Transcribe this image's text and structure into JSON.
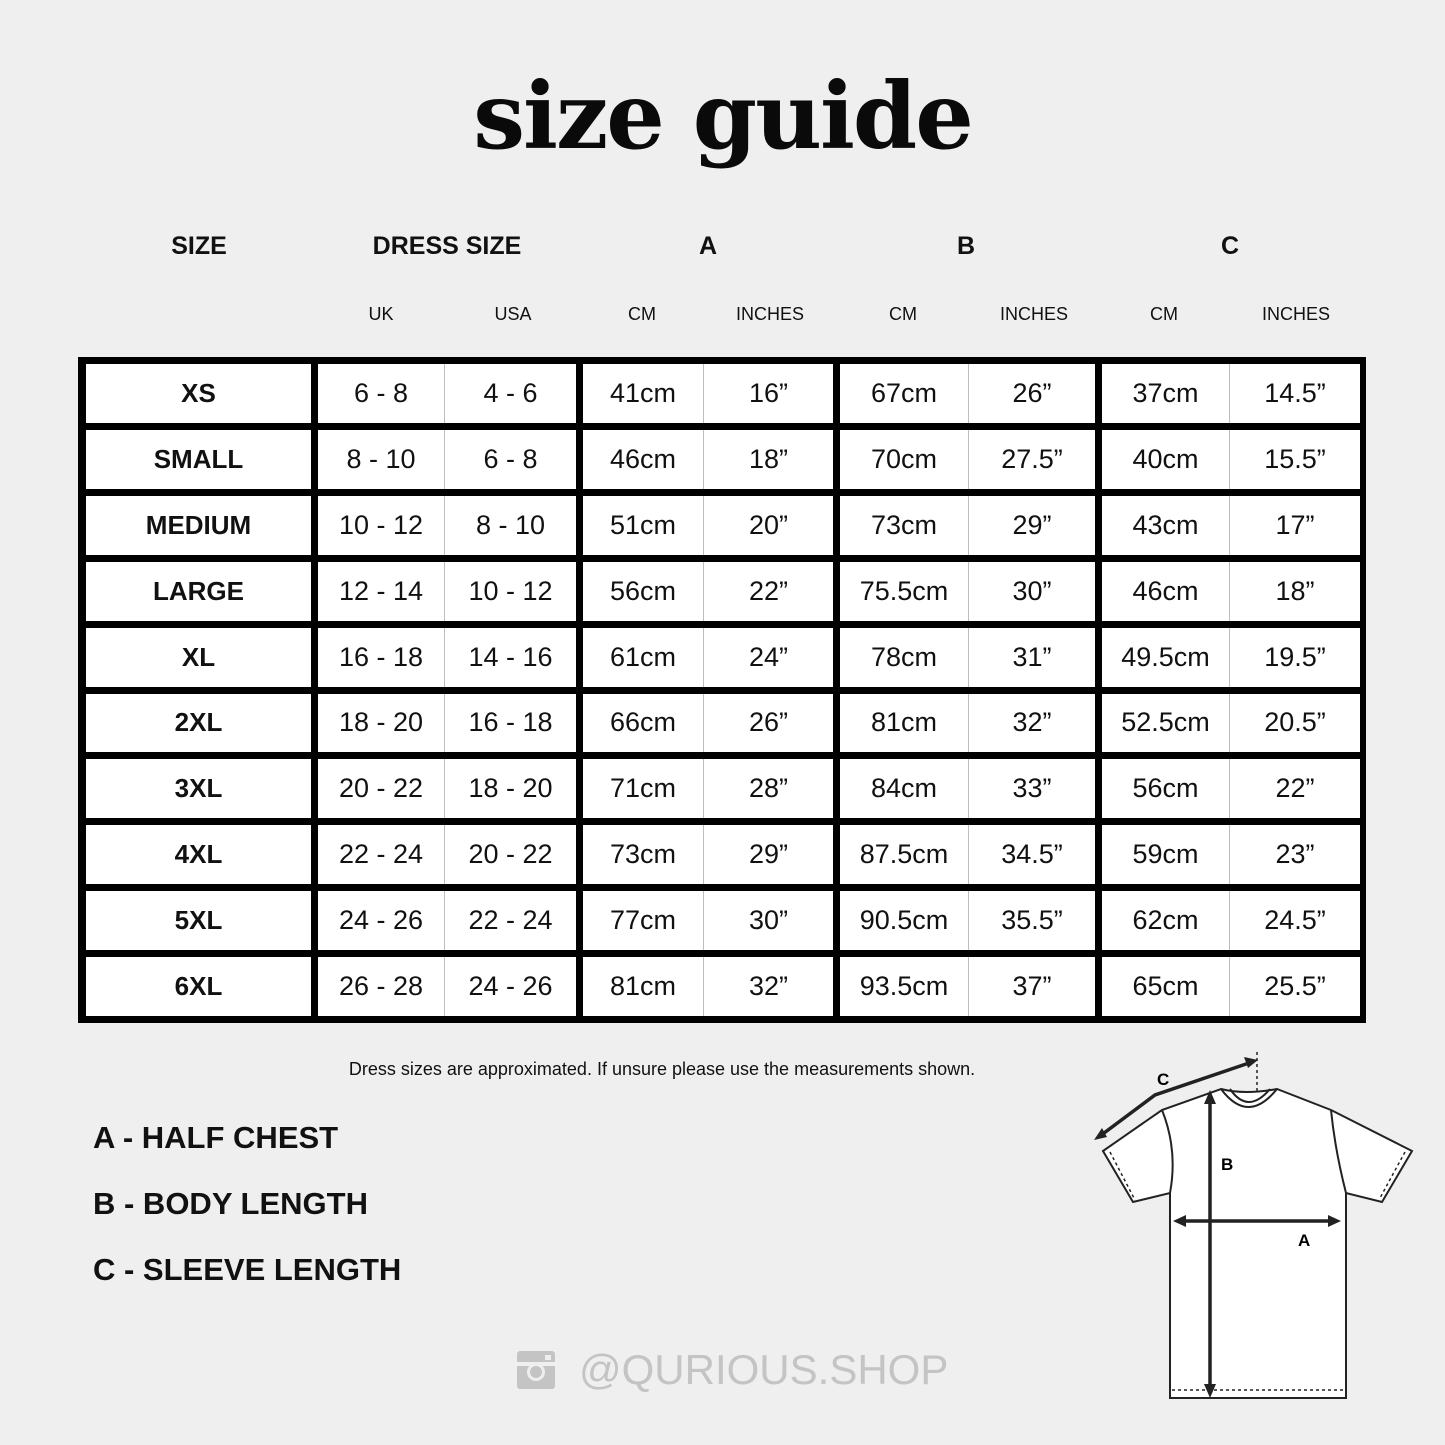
{
  "title": "size guide",
  "headers": {
    "size": "SIZE",
    "dress_size": "DRESS SIZE",
    "a": "A",
    "b": "B",
    "c": "C"
  },
  "subheaders": [
    "UK",
    "USA",
    "CM",
    "INCHES",
    "CM",
    "INCHES",
    "CM",
    "INCHES"
  ],
  "rows": [
    [
      "XS",
      "6 - 8",
      "4 - 6",
      "41cm",
      "16”",
      "67cm",
      "26”",
      "37cm",
      "14.5”"
    ],
    [
      "SMALL",
      "8 - 10",
      "6 - 8",
      "46cm",
      "18”",
      "70cm",
      "27.5”",
      "40cm",
      "15.5”"
    ],
    [
      "MEDIUM",
      "10 - 12",
      "8 - 10",
      "51cm",
      "20”",
      "73cm",
      "29”",
      "43cm",
      "17”"
    ],
    [
      "LARGE",
      "12 - 14",
      "10 - 12",
      "56cm",
      "22”",
      "75.5cm",
      "30”",
      "46cm",
      "18”"
    ],
    [
      "XL",
      "16 - 18",
      "14 - 16",
      "61cm",
      "24”",
      "78cm",
      "31”",
      "49.5cm",
      "19.5”"
    ],
    [
      "2XL",
      "18 - 20",
      "16 - 18",
      "66cm",
      "26”",
      "81cm",
      "32”",
      "52.5cm",
      "20.5”"
    ],
    [
      "3XL",
      "20 - 22",
      "18 - 20",
      "71cm",
      "28”",
      "84cm",
      "33”",
      "56cm",
      "22”"
    ],
    [
      "4XL",
      "22 - 24",
      "20 - 22",
      "73cm",
      "29”",
      "87.5cm",
      "34.5”",
      "59cm",
      "23”"
    ],
    [
      "5XL",
      "24 - 26",
      "22 - 24",
      "77cm",
      "30”",
      "90.5cm",
      "35.5”",
      "62cm",
      "24.5”"
    ],
    [
      "6XL",
      "26 - 28",
      "24 - 26",
      "81cm",
      "32”",
      "93.5cm",
      "37”",
      "65cm",
      "25.5”"
    ]
  ],
  "note": "Dress sizes are approximated. If unsure please use the measurements shown.",
  "legend": [
    "A - HALF CHEST",
    "B - BODY LENGTH",
    "C - SLEEVE LENGTH"
  ],
  "diagram_labels": {
    "a": "A",
    "b": "B",
    "c": "C"
  },
  "social": {
    "icon": "instagram-icon",
    "handle": "@QURIOUS.SHOP"
  }
}
